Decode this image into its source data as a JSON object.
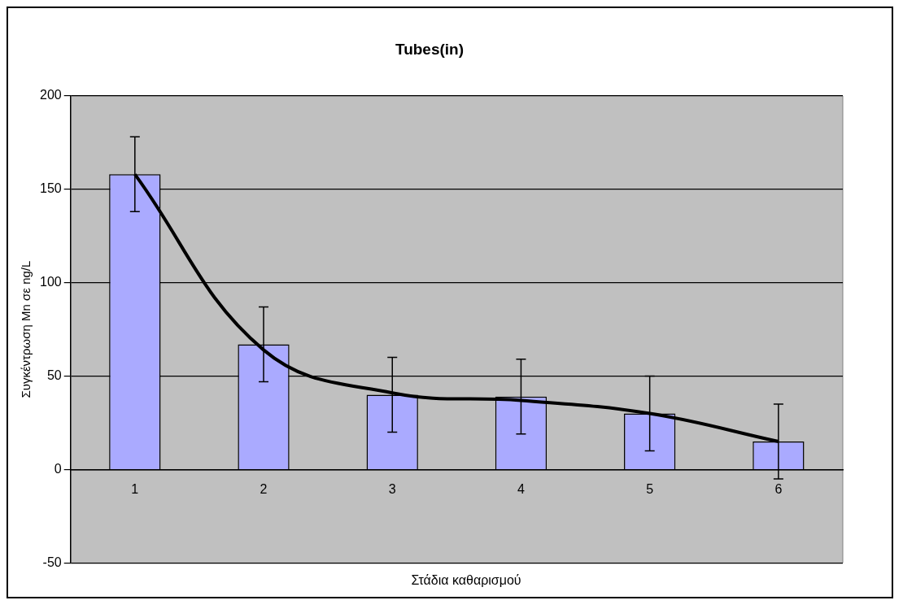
{
  "chart_data": {
    "type": "bar",
    "title": "Tubes(in)",
    "xlabel": "Στάδια καθαρισμού",
    "ylabel": "Συγκέντρωση Mn σε ng/L",
    "categories": [
      "1",
      "2",
      "3",
      "4",
      "5",
      "6"
    ],
    "series": [
      {
        "color": "#aaaaff",
        "values": [
          158,
          67,
          40,
          39,
          30,
          15
        ],
        "errors": [
          20,
          20,
          20,
          20,
          20,
          20
        ]
      },
      {
        "type": "line",
        "color": "#000000",
        "values": [
          158,
          64,
          41,
          37,
          30,
          15
        ]
      }
    ],
    "ylim": [
      -50,
      200
    ],
    "yticks": [
      -50,
      0,
      50,
      100,
      150,
      200
    ],
    "grid": "y",
    "legend": false,
    "marker": "none"
  }
}
